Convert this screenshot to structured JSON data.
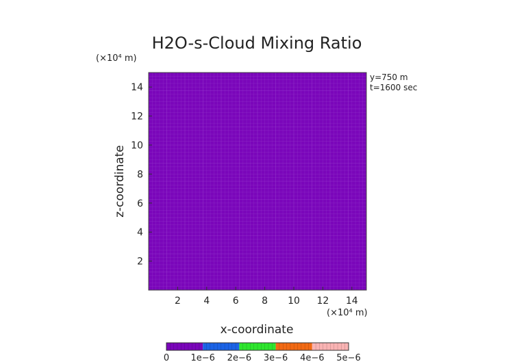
{
  "chart_data": {
    "type": "heatmap",
    "title": "H2O-s-Cloud Mixing Ratio",
    "xlabel": "x-coordinate",
    "ylabel": "z-coordinate",
    "x_unit": "(×10⁴ m)",
    "y_unit": "(×10⁴ m)",
    "xlim": [
      0,
      15
    ],
    "ylim": [
      0,
      15
    ],
    "xticks": [
      2,
      4,
      6,
      8,
      10,
      12,
      14
    ],
    "yticks": [
      2,
      4,
      6,
      8,
      10,
      12,
      14
    ],
    "annotations": [
      "y=750 m",
      "t=1600 sec"
    ],
    "field_value": 0,
    "field_color": "#7a06ba",
    "grid_line_color": "#a657d6",
    "colorbar": {
      "ticks": [
        "0",
        "1e−6",
        "2e−6",
        "3e−6",
        "4e−6",
        "5e−6"
      ],
      "segments": [
        {
          "range": [
            0,
            1e-06
          ],
          "color": "#7a06ba"
        },
        {
          "range": [
            1e-06,
            2e-06
          ],
          "color": "#1b63e6"
        },
        {
          "range": [
            2e-06,
            3e-06
          ],
          "color": "#2ee62e"
        },
        {
          "range": [
            3e-06,
            4e-06
          ],
          "color": "#f26a14"
        },
        {
          "range": [
            4e-06,
            5e-06
          ],
          "color": "#f9b3b3"
        }
      ]
    }
  }
}
